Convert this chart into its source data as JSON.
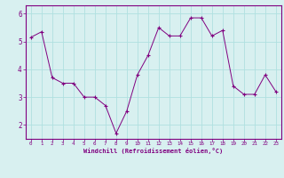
{
  "x": [
    0,
    1,
    2,
    3,
    4,
    5,
    6,
    7,
    8,
    9,
    10,
    11,
    12,
    13,
    14,
    15,
    16,
    17,
    18,
    19,
    20,
    21,
    22,
    23
  ],
  "y": [
    5.15,
    5.35,
    3.7,
    3.5,
    3.5,
    3.0,
    3.0,
    2.7,
    1.7,
    2.5,
    3.8,
    4.5,
    5.5,
    5.2,
    5.2,
    5.85,
    5.85,
    5.2,
    5.4,
    3.4,
    3.1,
    3.1,
    3.8,
    3.2
  ],
  "line_color": "#800080",
  "marker_color": "#800080",
  "bg_color": "#d8f0f0",
  "grid_color": "#b0e0e0",
  "spine_color": "#800080",
  "xlabel": "Windchill (Refroidissement éolien,°C)",
  "tick_text_color": "#800080",
  "ylim": [
    1.5,
    6.3
  ],
  "xlim": [
    -0.5,
    23.5
  ],
  "yticks": [
    2,
    3,
    4,
    5,
    6
  ],
  "xticks": [
    0,
    1,
    2,
    3,
    4,
    5,
    6,
    7,
    8,
    9,
    10,
    11,
    12,
    13,
    14,
    15,
    16,
    17,
    18,
    19,
    20,
    21,
    22,
    23
  ],
  "xtick_labels": [
    "0",
    "1",
    "2",
    "3",
    "4",
    "5",
    "6",
    "7",
    "8",
    "9",
    "10",
    "11",
    "12",
    "13",
    "14",
    "15",
    "16",
    "17",
    "18",
    "19",
    "20",
    "21",
    "22",
    "23"
  ]
}
